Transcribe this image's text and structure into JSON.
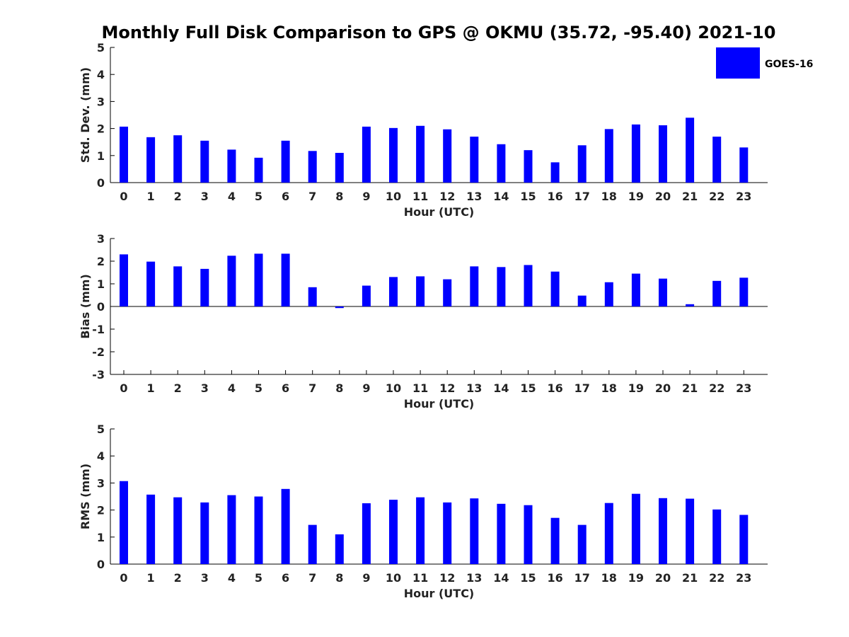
{
  "title": "Monthly Full Disk Comparison to GPS @ OKMU (35.72, -95.40) 2021-10",
  "legend": {
    "label": "GOES-16",
    "color": "#0000ff",
    "placement": "top-right"
  },
  "chart_data": [
    {
      "type": "bar",
      "xlabel": "Hour (UTC)",
      "ylabel": "Std. Dev. (mm)",
      "ylim": [
        0,
        5
      ],
      "yticks": [
        "0",
        "1",
        "2",
        "3",
        "4",
        "5"
      ],
      "categories": [
        "0",
        "1",
        "2",
        "3",
        "4",
        "5",
        "6",
        "7",
        "8",
        "9",
        "10",
        "11",
        "12",
        "13",
        "14",
        "15",
        "16",
        "17",
        "18",
        "19",
        "20",
        "21",
        "22",
        "23"
      ],
      "series": [
        {
          "name": "GOES-16",
          "values": [
            2.07,
            1.68,
            1.75,
            1.55,
            1.22,
            0.92,
            1.55,
            1.17,
            1.1,
            2.07,
            2.02,
            2.1,
            1.97,
            1.7,
            1.42,
            1.2,
            0.75,
            1.38,
            1.98,
            2.15,
            2.12,
            2.4,
            1.7,
            1.3
          ]
        }
      ]
    },
    {
      "type": "bar",
      "xlabel": "Hour (UTC)",
      "ylabel": "Bias (mm)",
      "ylim": [
        -3,
        3
      ],
      "yticks": [
        "-3",
        "-2",
        "-1",
        "0",
        "1",
        "2",
        "3"
      ],
      "categories": [
        "0",
        "1",
        "2",
        "3",
        "4",
        "5",
        "6",
        "7",
        "8",
        "9",
        "10",
        "11",
        "12",
        "13",
        "14",
        "15",
        "16",
        "17",
        "18",
        "19",
        "20",
        "21",
        "22",
        "23"
      ],
      "series": [
        {
          "name": "GOES-16",
          "values": [
            2.3,
            1.98,
            1.77,
            1.66,
            2.24,
            2.33,
            2.33,
            0.85,
            -0.07,
            0.92,
            1.3,
            1.33,
            1.2,
            1.77,
            1.74,
            1.83,
            1.54,
            0.48,
            1.07,
            1.45,
            1.23,
            0.1,
            1.13,
            1.27
          ]
        }
      ]
    },
    {
      "type": "bar",
      "xlabel": "Hour (UTC)",
      "ylabel": "RMS (mm)",
      "ylim": [
        0,
        5
      ],
      "yticks": [
        "0",
        "1",
        "2",
        "3",
        "4",
        "5"
      ],
      "categories": [
        "0",
        "1",
        "2",
        "3",
        "4",
        "5",
        "6",
        "7",
        "8",
        "9",
        "10",
        "11",
        "12",
        "13",
        "14",
        "15",
        "16",
        "17",
        "18",
        "19",
        "20",
        "21",
        "22",
        "23"
      ],
      "series": [
        {
          "name": "GOES-16",
          "values": [
            3.07,
            2.57,
            2.47,
            2.28,
            2.55,
            2.5,
            2.78,
            1.45,
            1.1,
            2.25,
            2.38,
            2.47,
            2.28,
            2.43,
            2.23,
            2.18,
            1.71,
            1.45,
            2.26,
            2.6,
            2.44,
            2.42,
            2.02,
            1.82
          ]
        }
      ]
    }
  ]
}
